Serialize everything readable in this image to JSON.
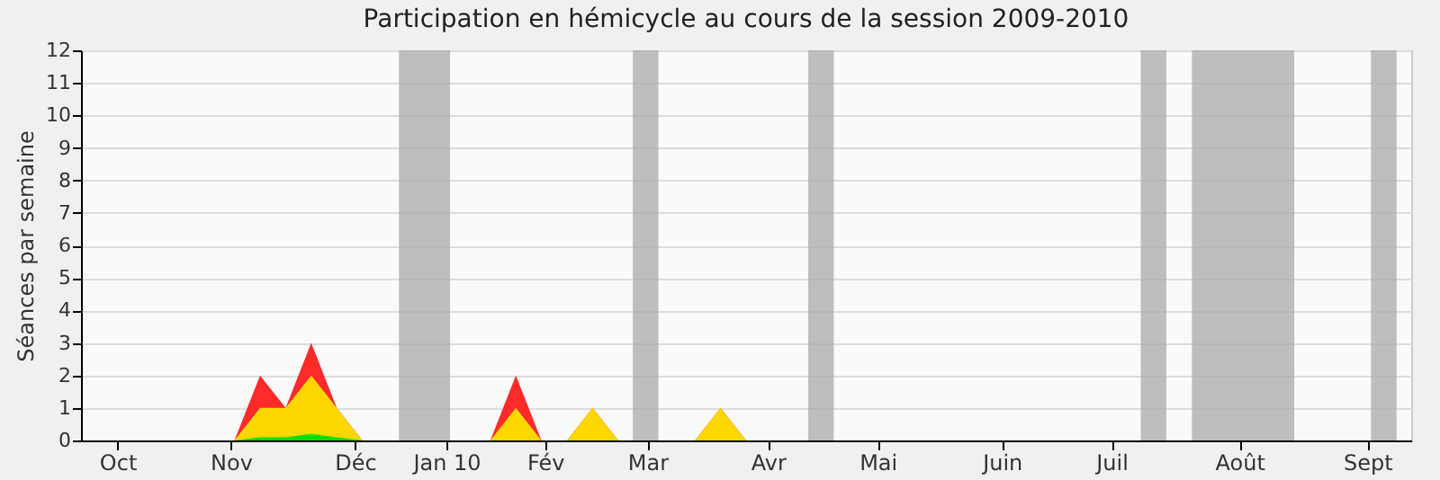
{
  "chart_data": {
    "type": "area",
    "title": "Participation en hémicycle au cours de la session 2009-2010",
    "ylabel": "Séances par semaine",
    "x": [
      "2009-09-28",
      "2009-11-09",
      "2009-11-16",
      "2009-11-23",
      "2009-11-30",
      "2009-12-07",
      "2009-12-14",
      "2010-01-18",
      "2010-01-25",
      "2010-02-01",
      "2010-02-08",
      "2010-02-15",
      "2010-02-22",
      "2010-03-15",
      "2010-03-22",
      "2010-03-29",
      "2010-09-27"
    ],
    "series": [
      {
        "color": "#ff2a2a",
        "values": [
          0,
          0,
          2,
          1,
          3,
          1,
          0,
          0,
          2,
          0,
          0,
          1,
          0,
          0,
          1,
          0,
          0
        ]
      },
      {
        "color": "#ffd700",
        "values": [
          0,
          0,
          1,
          1,
          2,
          1,
          0,
          0,
          1,
          0,
          0,
          1,
          0,
          0,
          1,
          0,
          0
        ]
      },
      {
        "color": "#00e000",
        "values": [
          0,
          0,
          0.1,
          0.1,
          0.2,
          0.1,
          0,
          0,
          0,
          0,
          0,
          0,
          0,
          0,
          0,
          0,
          0
        ]
      }
    ],
    "xlim": [
      "2009-09-28",
      "2010-09-27"
    ],
    "xticks": [
      {
        "value": "2009-10-08",
        "label": "Oct"
      },
      {
        "value": "2009-11-08",
        "label": "Nov"
      },
      {
        "value": "2009-12-12",
        "label": "Déc"
      },
      {
        "value": "2010-01-06",
        "label": "Jan 10"
      },
      {
        "value": "2010-02-02",
        "label": "Fév"
      },
      {
        "value": "2010-03-02",
        "label": "Mar"
      },
      {
        "value": "2010-04-04",
        "label": "Avr"
      },
      {
        "value": "2010-05-04",
        "label": "Mai"
      },
      {
        "value": "2010-06-07",
        "label": "Juin"
      },
      {
        "value": "2010-07-07",
        "label": "Juil"
      },
      {
        "value": "2010-08-11",
        "label": "Août"
      },
      {
        "value": "2010-09-15",
        "label": "Sept"
      }
    ],
    "ylim": [
      0,
      12
    ],
    "yticks": [
      0,
      1,
      2,
      3,
      4,
      5,
      6,
      7,
      8,
      9,
      10,
      11,
      12
    ],
    "grid": "y",
    "bands": [
      {
        "axis": "x",
        "from": "2009-12-24",
        "to": "2010-01-07",
        "color": "#aaaaaa"
      },
      {
        "axis": "x",
        "from": "2010-02-26",
        "to": "2010-03-05",
        "color": "#aaaaaa"
      },
      {
        "axis": "x",
        "from": "2010-04-15",
        "to": "2010-04-22",
        "color": "#aaaaaa"
      },
      {
        "axis": "x",
        "from": "2010-07-15",
        "to": "2010-07-22",
        "color": "#aaaaaa"
      },
      {
        "axis": "x",
        "from": "2010-07-29",
        "to": "2010-08-26",
        "color": "#aaaaaa"
      },
      {
        "axis": "x",
        "from": "2010-09-16",
        "to": "2010-09-23",
        "color": "#aaaaaa"
      }
    ]
  }
}
